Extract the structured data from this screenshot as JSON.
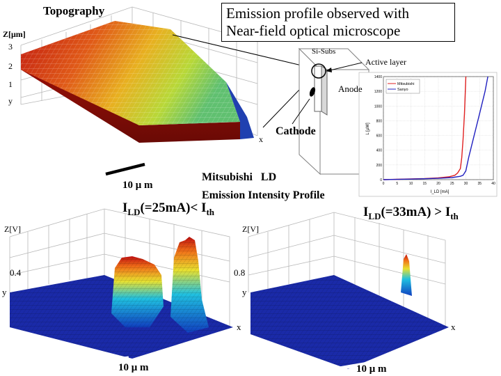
{
  "topography": {
    "title": "Topography",
    "z_label": "Z[μm]",
    "z_ticks": [
      "3",
      "2",
      "1"
    ],
    "y_label": "y",
    "x_label": "x",
    "scale_label": "10 μ m"
  },
  "callout": {
    "line1": "Emission profile observed with",
    "line2": "Near-field optical microscope"
  },
  "device": {
    "si_subs": "Si-Subs",
    "active_layer": "Active layer",
    "anode": "Anode",
    "cathode": "Cathode"
  },
  "center_title": {
    "line1": "Mitsubishi   LD",
    "line2": "Emission Intensity Profile"
  },
  "left_profile": {
    "heading_pre": "I",
    "heading_sub": "LD",
    "heading_mid": "(=25mA)< I",
    "heading_sub2": "th",
    "z_label": "Z[V]",
    "z_tick": "0.4",
    "y_label": "y",
    "x_label": "x",
    "scale_label": "10 μ m"
  },
  "right_profile": {
    "heading_pre": "I",
    "heading_sub": "LD",
    "heading_mid": "(=33mA) > I",
    "heading_sub2": "th",
    "z_label": "Z[V]",
    "z_tick": "0.8",
    "y_label": "y",
    "x_label": "x",
    "scale_label": "10 μ m"
  },
  "chart_data": {
    "type": "line",
    "title": "",
    "xlabel": "I_LD [mA]",
    "ylabel": "L [μW]",
    "xlim": [
      0,
      40
    ],
    "ylim": [
      0,
      1400
    ],
    "x_ticks": [
      "0",
      "5",
      "10",
      "15",
      "20",
      "25",
      "30",
      "35",
      "40"
    ],
    "y_ticks": [
      "0",
      "200",
      "400",
      "600",
      "800",
      "1000",
      "1200",
      "1400"
    ],
    "grid": true,
    "legend_position": "top-left",
    "series": [
      {
        "name": "Mitsubishi",
        "color": "#e02020",
        "x": [
          0,
          5,
          10,
          15,
          20,
          24,
          26,
          27,
          28,
          28.5,
          29,
          29.5,
          29.8,
          30
        ],
        "y": [
          0,
          5,
          10,
          15,
          25,
          40,
          60,
          90,
          150,
          300,
          550,
          900,
          1200,
          1400
        ]
      },
      {
        "name": "Sanyo",
        "color": "#2020c0",
        "x": [
          0,
          5,
          10,
          15,
          20,
          25,
          28,
          29,
          30,
          31,
          33,
          35,
          37,
          38
        ],
        "y": [
          0,
          4,
          8,
          12,
          18,
          28,
          45,
          60,
          120,
          300,
          600,
          900,
          1200,
          1400
        ]
      }
    ]
  }
}
